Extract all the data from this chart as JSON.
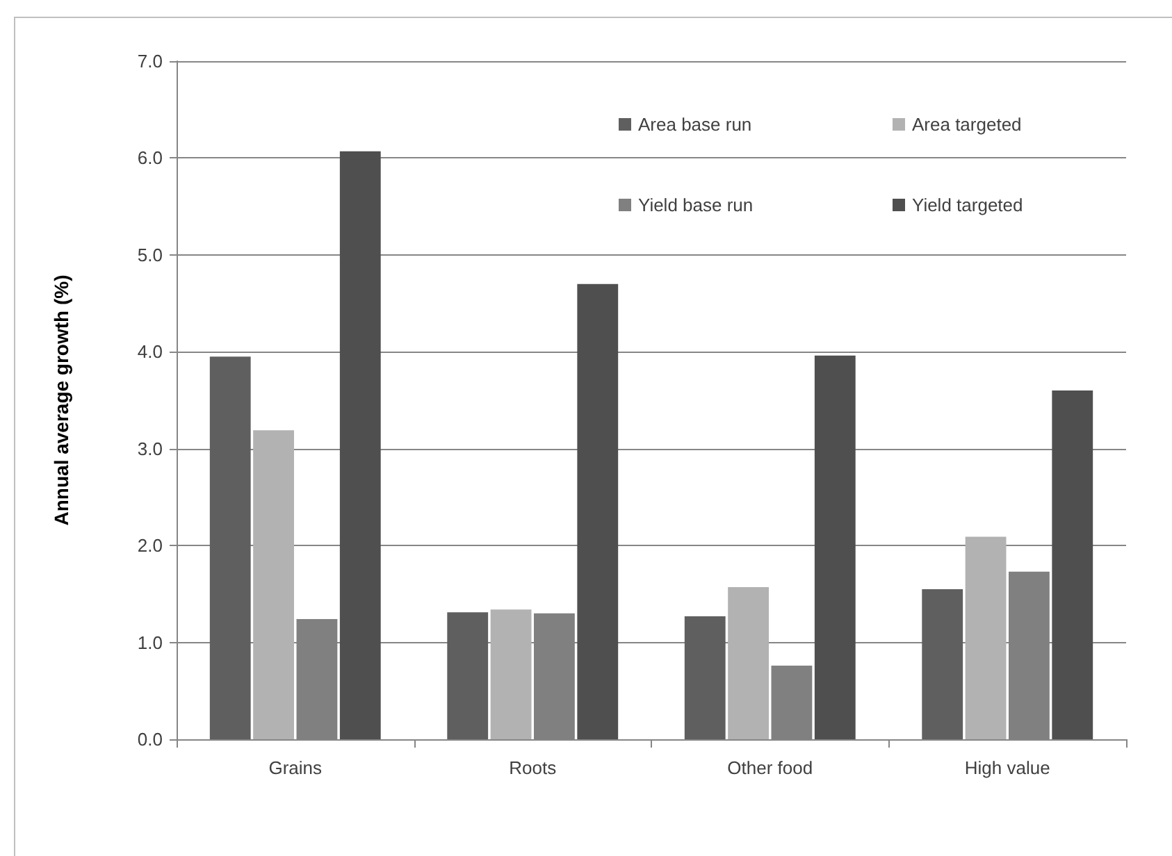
{
  "chart_data": {
    "type": "bar",
    "ylabel": "Annual average growth (%)",
    "categories": [
      "Grains",
      "Roots",
      "Other food",
      "High value"
    ],
    "series": [
      {
        "name": "Area base run",
        "color": "#5f5f5f",
        "values": [
          3.95,
          1.31,
          1.27,
          1.55
        ]
      },
      {
        "name": "Area targeted",
        "color": "#b2b2b2",
        "values": [
          3.19,
          1.34,
          1.57,
          2.09
        ]
      },
      {
        "name": "Yield base run",
        "color": "#808080",
        "values": [
          1.24,
          1.3,
          0.76,
          1.73
        ]
      },
      {
        "name": "Yield targeted",
        "color": "#4f4f4f",
        "values": [
          6.07,
          4.7,
          3.96,
          3.6
        ]
      }
    ],
    "ylim": [
      0,
      7
    ],
    "yticks": [
      {
        "value": 0,
        "label": "0.0"
      },
      {
        "value": 1,
        "label": "1.0"
      },
      {
        "value": 2,
        "label": "2.0"
      },
      {
        "value": 3,
        "label": "3.0"
      },
      {
        "value": 4,
        "label": "4.0"
      },
      {
        "value": 5,
        "label": "5.0"
      },
      {
        "value": 6,
        "label": "6.0"
      },
      {
        "value": 7,
        "label": "7.0"
      }
    ],
    "grid": "y",
    "legend": "top right"
  }
}
